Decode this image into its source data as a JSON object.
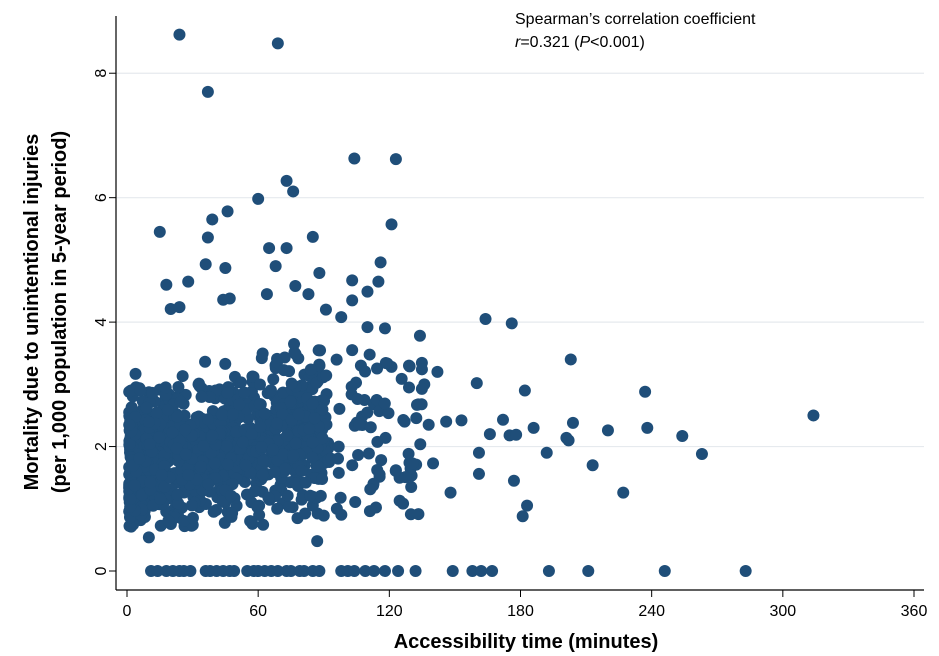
{
  "chart_data": {
    "type": "scatter",
    "xlabel": "Accessibility time (minutes)",
    "ylabel_line1": "Mortality due to unintentional injuries",
    "ylabel_line2": "(per 1,000 population in 5-year period)",
    "xlim": [
      0,
      360
    ],
    "ylim": [
      0,
      9
    ],
    "xticks": [
      0,
      60,
      120,
      180,
      240,
      300,
      360
    ],
    "yticks": [
      0,
      2,
      4,
      6,
      8
    ],
    "grid": "horizontal",
    "marker_color": "#1f4e79",
    "annotation": {
      "line1": "Spearman’s correlation coefficient",
      "line2_r": "r",
      "line2_mid": "=0.321 (",
      "line2_p": "P",
      "line2_end": "<0.001)"
    },
    "points": [
      [
        24,
        8.62
      ],
      [
        69,
        8.48
      ],
      [
        37,
        7.7
      ],
      [
        104,
        6.63
      ],
      [
        123,
        6.62
      ],
      [
        73,
        6.27
      ],
      [
        76,
        6.1
      ],
      [
        60,
        5.98
      ],
      [
        46,
        5.78
      ],
      [
        39,
        5.65
      ],
      [
        121,
        5.57
      ],
      [
        15,
        5.45
      ],
      [
        37,
        5.36
      ],
      [
        85,
        5.37
      ],
      [
        65,
        5.19
      ],
      [
        73,
        5.19
      ],
      [
        116,
        4.96
      ],
      [
        36,
        4.93
      ],
      [
        68,
        4.9
      ],
      [
        45,
        4.87
      ],
      [
        88,
        4.79
      ],
      [
        103,
        4.67
      ],
      [
        28,
        4.65
      ],
      [
        115,
        4.65
      ],
      [
        77,
        4.58
      ],
      [
        18,
        4.6
      ],
      [
        110,
        4.49
      ],
      [
        64,
        4.45
      ],
      [
        47,
        4.38
      ],
      [
        44,
        4.36
      ],
      [
        83,
        4.45
      ],
      [
        103,
        4.35
      ],
      [
        20,
        4.21
      ],
      [
        24,
        4.24
      ],
      [
        91,
        4.2
      ],
      [
        98,
        4.08
      ],
      [
        164,
        4.05
      ],
      [
        176,
        3.98
      ],
      [
        134,
        3.78
      ],
      [
        118,
        3.9
      ],
      [
        110,
        3.92
      ],
      [
        103,
        3.55
      ],
      [
        107,
        3.3
      ],
      [
        121,
        3.28
      ],
      [
        129,
        3.3
      ],
      [
        142,
        3.2
      ],
      [
        203,
        3.4
      ],
      [
        160,
        3.02
      ],
      [
        182,
        2.9
      ],
      [
        237,
        2.88
      ],
      [
        136,
        3.0
      ],
      [
        129,
        2.95
      ],
      [
        146,
        2.4
      ],
      [
        172,
        2.43
      ],
      [
        153,
        2.42
      ],
      [
        127,
        2.4
      ],
      [
        138,
        2.35
      ],
      [
        166,
        2.2
      ],
      [
        175,
        2.18
      ],
      [
        178,
        2.19
      ],
      [
        186,
        2.3
      ],
      [
        204,
        2.38
      ],
      [
        220,
        2.26
      ],
      [
        238,
        2.3
      ],
      [
        254,
        2.17
      ],
      [
        202,
        2.1
      ],
      [
        201,
        2.14
      ],
      [
        192,
        1.9
      ],
      [
        263,
        1.88
      ],
      [
        161,
        1.9
      ],
      [
        213,
        1.7
      ],
      [
        227,
        1.26
      ],
      [
        148,
        1.26
      ],
      [
        177,
        1.45
      ],
      [
        183,
        1.05
      ],
      [
        181,
        0.88
      ],
      [
        161,
        1.56
      ],
      [
        314,
        2.5
      ],
      [
        123,
        1.62
      ],
      [
        140,
        1.73
      ],
      [
        87,
        0.48
      ],
      [
        10,
        0.54
      ],
      [
        130,
        1.35
      ],
      [
        96,
        1.0
      ],
      [
        90,
        0.89
      ],
      [
        78,
        0.85
      ],
      [
        85,
        1.05
      ],
      [
        11,
        0
      ],
      [
        14,
        0
      ],
      [
        18,
        0
      ],
      [
        21,
        0
      ],
      [
        24,
        0
      ],
      [
        26,
        0
      ],
      [
        29,
        0
      ],
      [
        36,
        0
      ],
      [
        38,
        0
      ],
      [
        41,
        0
      ],
      [
        44,
        0
      ],
      [
        47,
        0
      ],
      [
        49,
        0
      ],
      [
        55,
        0
      ],
      [
        58,
        0
      ],
      [
        60,
        0
      ],
      [
        63,
        0
      ],
      [
        66,
        0
      ],
      [
        69,
        0
      ],
      [
        73,
        0
      ],
      [
        75,
        0
      ],
      [
        79,
        0
      ],
      [
        81,
        0
      ],
      [
        85,
        0
      ],
      [
        88,
        0
      ],
      [
        98,
        0
      ],
      [
        101,
        0
      ],
      [
        104,
        0
      ],
      [
        109,
        0
      ],
      [
        113,
        0
      ],
      [
        118,
        0
      ],
      [
        124,
        0
      ],
      [
        132,
        0
      ],
      [
        149,
        0
      ],
      [
        158,
        0
      ],
      [
        162,
        0
      ],
      [
        167,
        0
      ],
      [
        193,
        0
      ],
      [
        211,
        0
      ],
      [
        246,
        0
      ],
      [
        283,
        0
      ]
    ]
  }
}
